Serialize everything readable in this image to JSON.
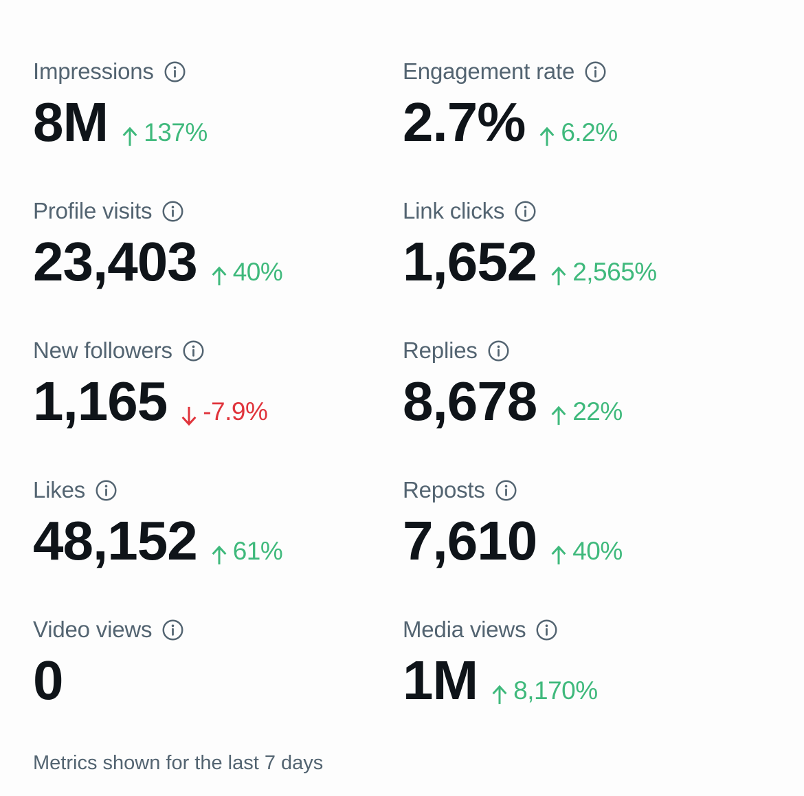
{
  "colors": {
    "positive": "#3fb97c",
    "negative": "#e0343c",
    "label": "#536471",
    "value": "#0f1419"
  },
  "metrics": [
    {
      "label": "Impressions",
      "value": "8M",
      "change": "137%",
      "direction": "up",
      "info_icon": "info-circle-icon"
    },
    {
      "label": "Engagement rate",
      "value": "2.7%",
      "change": "6.2%",
      "direction": "up",
      "info_icon": "info-circle-icon"
    },
    {
      "label": "Profile visits",
      "value": "23,403",
      "change": "40%",
      "direction": "up",
      "info_icon": "info-circle-icon"
    },
    {
      "label": "Link clicks",
      "value": "1,652",
      "change": "2,565%",
      "direction": "up",
      "info_icon": "info-circle-icon"
    },
    {
      "label": "New followers",
      "value": "1,165",
      "change": "-7.9%",
      "direction": "down",
      "info_icon": "info-circle-icon"
    },
    {
      "label": "Replies",
      "value": "8,678",
      "change": "22%",
      "direction": "up",
      "info_icon": "info-circle-icon"
    },
    {
      "label": "Likes",
      "value": "48,152",
      "change": "61%",
      "direction": "up",
      "info_icon": "info-circle-icon"
    },
    {
      "label": "Reposts",
      "value": "7,610",
      "change": "40%",
      "direction": "up",
      "info_icon": "info-circle-icon"
    },
    {
      "label": "Video views",
      "value": "0",
      "change": "",
      "direction": "none",
      "info_icon": "info-circle-icon"
    },
    {
      "label": "Media views",
      "value": "1M",
      "change": "8,170%",
      "direction": "up",
      "info_icon": "info-circle-icon"
    }
  ],
  "footer": {
    "text": "Metrics shown for the last 7 days"
  }
}
